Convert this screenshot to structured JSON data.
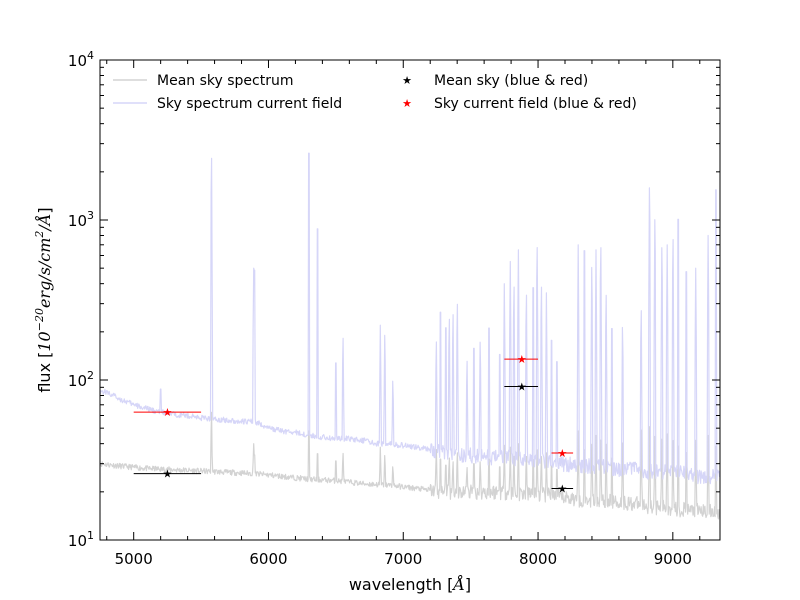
{
  "chart_data": {
    "type": "line",
    "xlabel": "wavelength [Å]",
    "xlabel_prefix": "wavelength [",
    "xlabel_unit": "Å",
    "xlabel_suffix": "]",
    "ylabel": "flux [10^-20 erg/s/cm^2/Å]",
    "ylabel_prefix": "flux [",
    "ylabel_base": "10",
    "ylabel_exp": "−20",
    "ylabel_unit": "erg/s/cm",
    "ylabel_unit_exp": "2",
    "ylabel_unit_tail": "/Å",
    "ylabel_suffix": "]",
    "xlim": [
      4750,
      9350
    ],
    "ylim": [
      10,
      10000
    ],
    "yscale": "log",
    "grid": false,
    "legend_placement": "top",
    "x_ticks": [
      5000,
      6000,
      7000,
      8000,
      9000
    ],
    "x_tick_labels": [
      "5000",
      "6000",
      "7000",
      "8000",
      "9000"
    ],
    "y_ticks": [
      10,
      100,
      1000,
      10000
    ],
    "y_tick_base": "10",
    "y_tick_exps": [
      "1",
      "2",
      "3",
      "4"
    ],
    "series": [
      {
        "name": "Mean sky spectrum",
        "style": "line",
        "color": "#d3d3d3",
        "continuum": [
          [
            4750,
            30
          ],
          [
            4900,
            29
          ],
          [
            5100,
            28
          ],
          [
            5300,
            27.5
          ],
          [
            5500,
            27
          ],
          [
            5700,
            26.5
          ],
          [
            5900,
            26
          ],
          [
            6100,
            25
          ],
          [
            6300,
            24
          ],
          [
            6500,
            23.5
          ],
          [
            6700,
            22.5
          ],
          [
            6900,
            22
          ],
          [
            7100,
            21
          ],
          [
            7300,
            20
          ],
          [
            7500,
            20
          ],
          [
            7700,
            20
          ],
          [
            7900,
            19.5
          ],
          [
            8100,
            19
          ],
          [
            8300,
            18
          ],
          [
            8500,
            17.5
          ],
          [
            8700,
            17
          ],
          [
            8900,
            16
          ],
          [
            9100,
            15.5
          ],
          [
            9300,
            15
          ]
        ],
        "lines": [
          [
            5200,
            18
          ],
          [
            5577,
            70
          ],
          [
            5890,
            40
          ],
          [
            5896,
            38
          ],
          [
            6300,
            60
          ],
          [
            6364,
            40
          ],
          [
            6500,
            35
          ],
          [
            6553,
            37
          ],
          [
            6830,
            38
          ],
          [
            6863,
            36
          ],
          [
            6923,
            30
          ],
          [
            7245,
            40
          ],
          [
            7276,
            38
          ],
          [
            7316,
            34
          ],
          [
            7341,
            35
          ],
          [
            7369,
            33
          ],
          [
            7401,
            38
          ],
          [
            7473,
            30
          ],
          [
            7524,
            35
          ],
          [
            7571,
            33
          ],
          [
            7636,
            38
          ],
          [
            7716,
            33
          ],
          [
            7750,
            39
          ],
          [
            7794,
            38
          ],
          [
            7821,
            36
          ],
          [
            7854,
            40
          ],
          [
            7913,
            36
          ],
          [
            7964,
            38
          ],
          [
            7993,
            40
          ],
          [
            8025,
            36
          ],
          [
            8062,
            35
          ],
          [
            8100,
            34
          ],
          [
            8140,
            32
          ],
          [
            8298,
            48
          ],
          [
            8344,
            46
          ],
          [
            8399,
            44
          ],
          [
            8430,
            45
          ],
          [
            8465,
            47
          ],
          [
            8505,
            44
          ],
          [
            8548,
            40
          ],
          [
            8627,
            45
          ],
          [
            8765,
            55
          ],
          [
            8827,
            58
          ],
          [
            8867,
            50
          ],
          [
            8919,
            48
          ],
          [
            8958,
            46
          ],
          [
            9001,
            47
          ],
          [
            9040,
            50
          ],
          [
            9100,
            45
          ],
          [
            9170,
            42
          ],
          [
            9262,
            45
          ],
          [
            9320,
            50
          ]
        ]
      },
      {
        "name": "Sky spectrum current field",
        "style": "line",
        "color": "#d6d6f8",
        "continuum": [
          [
            4750,
            85
          ],
          [
            4800,
            84
          ],
          [
            4900,
            76
          ],
          [
            5000,
            70
          ],
          [
            5100,
            66
          ],
          [
            5200,
            63
          ],
          [
            5300,
            61
          ],
          [
            5400,
            60
          ],
          [
            5500,
            58
          ],
          [
            5600,
            57
          ],
          [
            5700,
            56
          ],
          [
            5800,
            55
          ],
          [
            5900,
            55
          ],
          [
            6000,
            50
          ],
          [
            6100,
            48
          ],
          [
            6200,
            47
          ],
          [
            6300,
            45
          ],
          [
            6400,
            44
          ],
          [
            6500,
            43
          ],
          [
            6600,
            43
          ],
          [
            6700,
            42
          ],
          [
            6800,
            40
          ],
          [
            6900,
            40
          ],
          [
            7000,
            39
          ],
          [
            7100,
            38
          ],
          [
            7200,
            37
          ],
          [
            7300,
            36
          ],
          [
            7400,
            34
          ],
          [
            7500,
            34
          ],
          [
            7600,
            33
          ],
          [
            7700,
            33
          ],
          [
            7800,
            33
          ],
          [
            7900,
            32
          ],
          [
            8000,
            32
          ],
          [
            8100,
            31
          ],
          [
            8200,
            30
          ],
          [
            8300,
            29.5
          ],
          [
            8400,
            29
          ],
          [
            8500,
            29
          ],
          [
            8600,
            28
          ],
          [
            8700,
            28
          ],
          [
            8800,
            27
          ],
          [
            8900,
            27
          ],
          [
            9000,
            26.5
          ],
          [
            9100,
            26
          ],
          [
            9200,
            25
          ],
          [
            9300,
            25
          ]
        ],
        "lines": [
          [
            5200,
            100
          ],
          [
            5577,
            2900
          ],
          [
            5890,
            500
          ],
          [
            5896,
            700
          ],
          [
            6300,
            3900
          ],
          [
            6364,
            1300
          ],
          [
            6500,
            170
          ],
          [
            6553,
            210
          ],
          [
            6830,
            220
          ],
          [
            6863,
            220
          ],
          [
            6923,
            110
          ],
          [
            7245,
            200
          ],
          [
            7276,
            380
          ],
          [
            7316,
            300
          ],
          [
            7341,
            280
          ],
          [
            7369,
            300
          ],
          [
            7401,
            350
          ],
          [
            7473,
            150
          ],
          [
            7524,
            220
          ],
          [
            7571,
            200
          ],
          [
            7636,
            300
          ],
          [
            7716,
            200
          ],
          [
            7750,
            400
          ],
          [
            7794,
            550
          ],
          [
            7821,
            450
          ],
          [
            7854,
            650
          ],
          [
            7913,
            400
          ],
          [
            7964,
            550
          ],
          [
            7993,
            800
          ],
          [
            8025,
            450
          ],
          [
            8062,
            350
          ],
          [
            8100,
            250
          ],
          [
            8140,
            180
          ],
          [
            8298,
            700
          ],
          [
            8344,
            950
          ],
          [
            8399,
            600
          ],
          [
            8430,
            650
          ],
          [
            8465,
            800
          ],
          [
            8505,
            400
          ],
          [
            8548,
            300
          ],
          [
            8627,
            250
          ],
          [
            8765,
            320
          ],
          [
            8827,
            1900
          ],
          [
            8867,
            1200
          ],
          [
            8919,
            800
          ],
          [
            8958,
            700
          ],
          [
            9001,
            900
          ],
          [
            9040,
            1500
          ],
          [
            9100,
            700
          ],
          [
            9170,
            500
          ],
          [
            9262,
            800
          ],
          [
            9320,
            2300
          ]
        ]
      },
      {
        "name": "Mean sky (blue & red)",
        "style": "marker",
        "marker": "★",
        "color": "#000000",
        "points": [
          {
            "x": 5250,
            "y": 26,
            "xerr": [
              5000,
              5500
            ]
          },
          {
            "x": 7880,
            "y": 91,
            "xerr": [
              7750,
              8000
            ]
          },
          {
            "x": 8180,
            "y": 21,
            "xerr": [
              8100,
              8260
            ]
          }
        ]
      },
      {
        "name": "Sky current field (blue & red)",
        "style": "marker",
        "marker": "★",
        "color": "#ff0000",
        "points": [
          {
            "x": 5250,
            "y": 63,
            "xerr": [
              5000,
              5500
            ]
          },
          {
            "x": 7880,
            "y": 135,
            "xerr": [
              7750,
              8000
            ]
          },
          {
            "x": 8180,
            "y": 35,
            "xerr": [
              8100,
              8260
            ]
          }
        ]
      }
    ]
  }
}
